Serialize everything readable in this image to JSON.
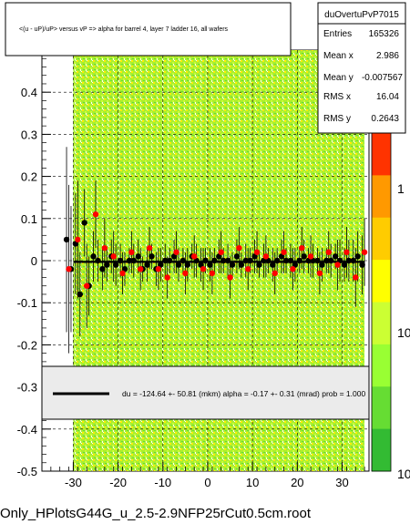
{
  "chart_data": {
    "type": "scatter",
    "title": "<(u - uP)/uP> versus   vP => alpha for barrel 4, layer 7 ladder 16, all wafers",
    "xlabel": "",
    "ylabel": "",
    "xlim": [
      -37,
      36
    ],
    "ylim": [
      -0.5,
      0.5
    ],
    "x_ticks": [
      -30,
      -20,
      -10,
      0,
      10,
      20,
      30
    ],
    "y_ticks": [
      -0.5,
      -0.4,
      -0.3,
      -0.2,
      -0.1,
      0,
      0.1,
      0.2,
      0.3,
      0.4
    ],
    "y_tick_labels": [
      "-0.5",
      "-0.4",
      "-0.3",
      "-0.2",
      "-0.1",
      "0",
      "0.1",
      "0.2",
      "0.3",
      "0.4"
    ],
    "grid": true,
    "colorbar": {
      "scale": "log",
      "labels": [
        "1",
        "10"
      ],
      "bottom_label": "10",
      "colors": [
        "#ff3300",
        "#ff9900",
        "#ffcc00",
        "#ffff00",
        "#ccff33",
        "#99ff33",
        "#66dd33",
        "#33bb33"
      ]
    },
    "density_band": {
      "x_range": [
        -30,
        35
      ],
      "y_range": [
        -0.5,
        0.5
      ],
      "colors": [
        "#99ff33",
        "#ccff33",
        "#ffee00"
      ]
    },
    "fit_line": {
      "y": -0.003,
      "x_range": [
        -30,
        35
      ]
    },
    "series": [
      {
        "name": "profile_black",
        "x": [
          -31.5,
          -30.5,
          -29.5,
          -28.5,
          -27.5,
          -26.5,
          -25.5,
          -24.5,
          -23.5,
          -22.5,
          -21.5,
          -20.5,
          -19.5,
          -18.5,
          -17.5,
          -16.5,
          -15.5,
          -14.5,
          -13.5,
          -12.5,
          -11.5,
          -10.5,
          -9.5,
          -8.5,
          -7.5,
          -6.5,
          -5.5,
          -4.5,
          -3.5,
          -2.5,
          -1.5,
          -0.5,
          0.5,
          1.5,
          2.5,
          3.5,
          4.5,
          5.5,
          6.5,
          7.5,
          8.5,
          9.5,
          10.5,
          11.5,
          12.5,
          13.5,
          14.5,
          15.5,
          16.5,
          17.5,
          18.5,
          19.5,
          20.5,
          21.5,
          22.5,
          23.5,
          24.5,
          25.5,
          26.5,
          27.5,
          28.5,
          29.5,
          30.5,
          31.5,
          32.5,
          33.5,
          34.5
        ],
        "y": [
          0.05,
          -0.02,
          0.04,
          -0.08,
          0.09,
          -0.06,
          0.01,
          0.0,
          -0.02,
          -0.01,
          0.01,
          -0.01,
          0.0,
          -0.02,
          0.0,
          0.0,
          0.01,
          -0.02,
          -0.01,
          0.01,
          -0.02,
          -0.01,
          0.0,
          0.0,
          0.01,
          -0.01,
          0.0,
          -0.01,
          0.01,
          0.0,
          -0.01,
          0.0,
          -0.01,
          0.0,
          0.01,
          0.0,
          0.0,
          -0.01,
          0.01,
          -0.01,
          0.0,
          0.0,
          0.01,
          -0.01,
          0.0,
          0.0,
          -0.01,
          0.0,
          0.01,
          0.0,
          0.0,
          -0.01,
          0.0,
          0.01,
          0.0,
          0.0,
          0.0,
          -0.01,
          0.0,
          0.0,
          0.01,
          0.0,
          -0.01,
          0.0,
          0.0,
          0.01,
          -0.01
        ],
        "err": [
          0.22,
          0.15,
          0.12,
          0.1,
          0.08,
          0.07,
          0.06,
          0.05,
          0.05,
          0.04,
          0.04,
          0.05,
          0.04,
          0.04,
          0.03,
          0.04,
          0.04,
          0.03,
          0.04,
          0.03,
          0.04,
          0.04,
          0.04,
          0.03,
          0.04,
          0.04,
          0.03,
          0.04,
          0.03,
          0.04,
          0.04,
          0.03,
          0.04,
          0.03,
          0.04,
          0.03,
          0.04,
          0.03,
          0.04,
          0.03,
          0.04,
          0.03,
          0.04,
          0.03,
          0.04,
          0.03,
          0.04,
          0.03,
          0.04,
          0.03,
          0.04,
          0.04,
          0.03,
          0.04,
          0.03,
          0.04,
          0.03,
          0.04,
          0.03,
          0.04,
          0.03,
          0.05,
          0.04,
          0.05,
          0.05,
          0.06,
          0.07
        ]
      },
      {
        "name": "profile_red",
        "x": [
          -31.0,
          -29.0,
          -27.0,
          -25.0,
          -23.0,
          -21.0,
          -19.0,
          -17.0,
          -15.0,
          -13.0,
          -11.0,
          -9.0,
          -7.0,
          -5.0,
          -3.0,
          -1.0,
          1.0,
          3.0,
          5.0,
          7.0,
          9.0,
          11.0,
          13.0,
          15.0,
          17.0,
          19.0,
          21.0,
          23.0,
          25.0,
          27.0,
          29.0,
          31.0,
          33.0,
          35.0
        ],
        "y": [
          -0.02,
          0.05,
          -0.06,
          0.11,
          0.03,
          0.01,
          -0.03,
          0.02,
          -0.02,
          0.03,
          -0.02,
          -0.04,
          0.02,
          -0.03,
          0.01,
          -0.02,
          -0.03,
          0.02,
          -0.04,
          0.03,
          -0.02,
          0.02,
          0.01,
          -0.03,
          0.02,
          -0.02,
          0.03,
          0.01,
          -0.03,
          0.02,
          -0.01,
          0.02,
          -0.04,
          0.02
        ],
        "err": [
          0.2,
          0.14,
          0.1,
          0.08,
          0.07,
          0.06,
          0.05,
          0.05,
          0.05,
          0.05,
          0.05,
          0.05,
          0.05,
          0.05,
          0.05,
          0.05,
          0.05,
          0.05,
          0.05,
          0.05,
          0.05,
          0.05,
          0.05,
          0.05,
          0.05,
          0.05,
          0.05,
          0.05,
          0.05,
          0.05,
          0.06,
          0.06,
          0.07,
          0.08
        ]
      }
    ]
  },
  "stats": {
    "name": "duOvertuPvP7015",
    "rows": [
      {
        "label": "Entries",
        "value": "165326"
      },
      {
        "label": "Mean x",
        "value": "2.986"
      },
      {
        "label": "Mean y",
        "value": "-0.007567"
      },
      {
        "label": "RMS x",
        "value": "16.04"
      },
      {
        "label": "RMS y",
        "value": "0.2643"
      }
    ]
  },
  "legend_text": "du = -124.64 +- 50.81 (mkm) alpha =    -0.17 +-  0.31 (mrad) prob = 1.000",
  "footer": "Only_HPlotsG44G_u_2.5-2.9NFP25rCut0.5cm.root"
}
